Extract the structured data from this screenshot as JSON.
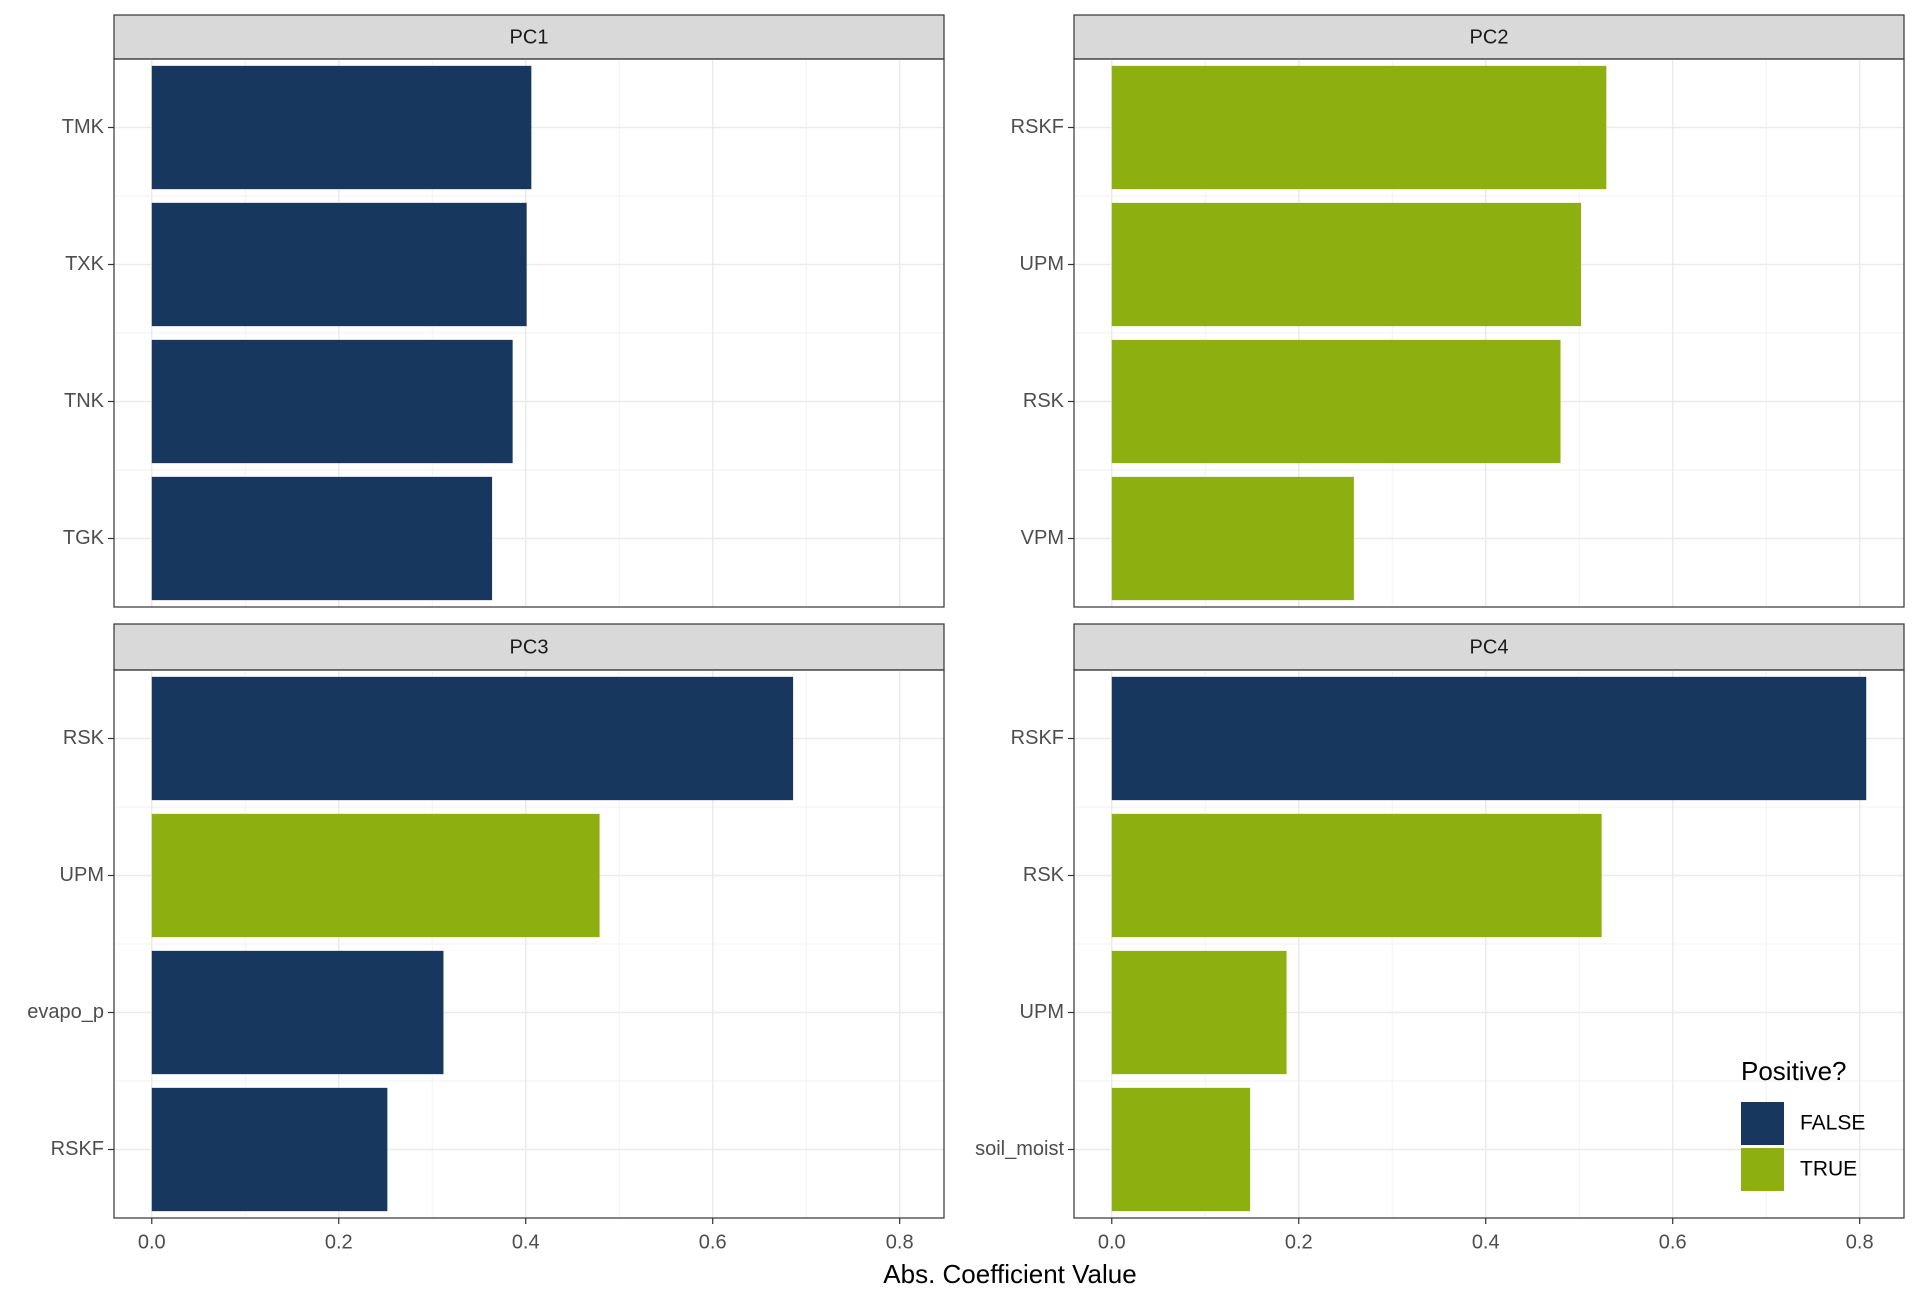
{
  "chart_data": {
    "type": "bar",
    "orientation": "horizontal",
    "xlabel": "Abs. Coefficient Value",
    "xlim": [
      -0.0404,
      0.8474
    ],
    "xticks": [
      {
        "value": 0,
        "label": "0.0"
      },
      {
        "value": 0.2,
        "label": "0.2"
      },
      {
        "value": 0.4,
        "label": "0.4"
      },
      {
        "value": 0.6,
        "label": "0.6"
      },
      {
        "value": 0.8,
        "label": "0.8"
      }
    ],
    "grid": true,
    "legend": {
      "title": "Positive?",
      "position": "inside-bottom-right",
      "items": [
        {
          "name": "FALSE",
          "color": "#17375e"
        },
        {
          "name": "TRUE",
          "color": "#8db010"
        }
      ]
    },
    "facets": [
      {
        "title": "PC1",
        "categories": [
          "TMK",
          "TXK",
          "TNK",
          "TGK"
        ],
        "values": [
          0.406,
          0.401,
          0.386,
          0.364
        ],
        "groups": [
          "FALSE",
          "FALSE",
          "FALSE",
          "FALSE"
        ]
      },
      {
        "title": "PC2",
        "categories": [
          "RSKF",
          "UPM",
          "RSK",
          "VPM"
        ],
        "values": [
          0.529,
          0.502,
          0.48,
          0.259
        ],
        "groups": [
          "TRUE",
          "TRUE",
          "TRUE",
          "TRUE"
        ]
      },
      {
        "title": "PC3",
        "categories": [
          "RSK",
          "UPM",
          "evapo_p",
          "RSKF"
        ],
        "values": [
          0.686,
          0.479,
          0.312,
          0.252
        ],
        "groups": [
          "FALSE",
          "TRUE",
          "FALSE",
          "FALSE"
        ]
      },
      {
        "title": "PC4",
        "categories": [
          "RSKF",
          "RSK",
          "UPM",
          "soil_moist"
        ],
        "values": [
          0.807,
          0.524,
          0.187,
          0.148
        ],
        "groups": [
          "FALSE",
          "TRUE",
          "TRUE",
          "TRUE"
        ]
      }
    ]
  }
}
